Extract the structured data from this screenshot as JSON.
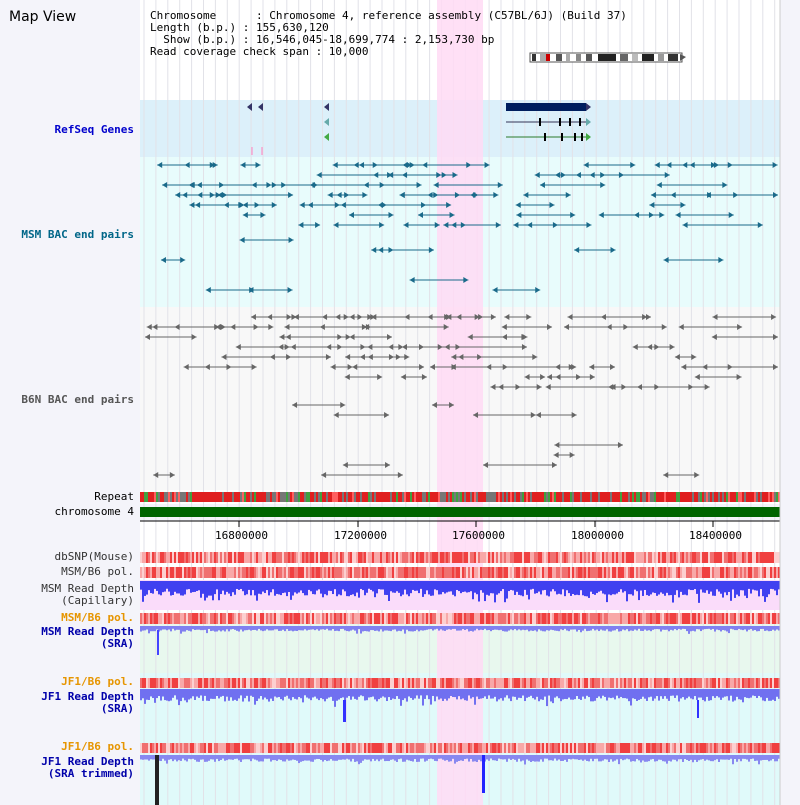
{
  "header": {
    "title": "Map View",
    "chromosome_line": "Chromosome      : Chromosome 4, reference assembly (C57BL/6J) (Build 37)",
    "length_line": "Length (b.p.) : 155,630,120",
    "show_line": "  Show (b.p.) : 16,546,045-18,699,774 : 2,153,730 bp",
    "coverage_line": "Read coverage check span : 10,000"
  },
  "tracks": {
    "refseq": "RefSeq Genes",
    "msm_bac": "MSM BAC end pairs",
    "b6n_bac": "B6N BAC end pairs",
    "repeat": "Repeat",
    "chromosome": "chromosome 4",
    "dbsnp": "dbSNP(Mouse)",
    "msm_b6_pol_1": "MSM/B6 pol.",
    "msm_read_depth_cap_1": "MSM Read Depth",
    "msm_read_depth_cap_2": "(Capillary)",
    "msm_b6_pol_2": "MSM/B6 pol.",
    "msm_read_depth_sra_1": "MSM Read Depth",
    "msm_read_depth_sra_2": "(SRA)",
    "jf1_b6_pol_1": "JF1/B6 pol.",
    "jf1_read_depth_sra_1": "JF1 Read Depth",
    "jf1_read_depth_sra_2": "(SRA)",
    "jf1_b6_pol_2": "JF1/B6 pol.",
    "jf1_read_depth_trim_1": "JF1 Read Depth",
    "jf1_read_depth_trim_2": "(SRA trimmed)"
  },
  "axis": {
    "ticks": [
      "16800000",
      "17200000",
      "17600000",
      "18000000",
      "18400000"
    ]
  },
  "colors": {
    "refseq_label": "#0000cc",
    "msm_label": "#006688",
    "b6n_label": "#555555",
    "pol_label": "#e69500",
    "depth_label": "#0000aa",
    "highlight": "#ffdaf5",
    "chromosome_bar": "#006400"
  }
}
